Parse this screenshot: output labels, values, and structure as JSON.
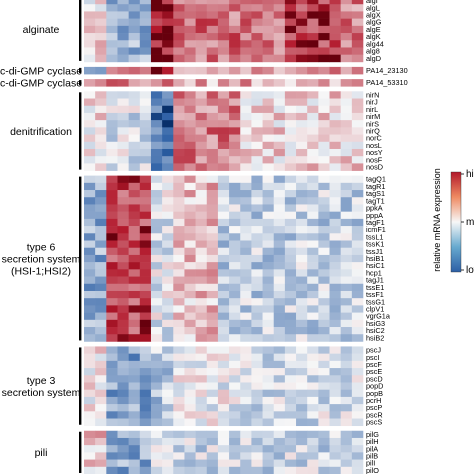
{
  "chart_data": {
    "type": "heatmap",
    "title": "",
    "xlabel": "",
    "ylabel": "",
    "columns": 25,
    "groups": [
      {
        "name": "alginate",
        "genes": [
          "algI",
          "algL",
          "algX",
          "algG",
          "algE",
          "algK",
          "alg44",
          "alg8",
          "algD"
        ],
        "pattern": "alg"
      },
      {
        "name": "c-di-GMP cyclase",
        "genes": [
          "PA14_23130"
        ],
        "pattern": "cdg1"
      },
      {
        "name": "c-di-GMP cyclase",
        "genes": [
          "PA14_53310"
        ],
        "pattern": "cdg2"
      },
      {
        "name": "denitrification",
        "genes": [
          "nirN",
          "nirJ",
          "nirL",
          "nirM",
          "nirS",
          "nirQ",
          "norC",
          "nosL",
          "nosY",
          "nosF",
          "nosD"
        ],
        "pattern": "denit"
      },
      {
        "name": "type 6 secretion system (HSI-1;HSI2)",
        "name_lines": [
          "type 6",
          "secretion system",
          "(HSI-1;HSI2)"
        ],
        "genes": [
          "tagQ1",
          "tagR1",
          "tagS1",
          "tagT1",
          "ppkA",
          "pppA",
          "tagF1",
          "icmF1",
          "tssL1",
          "tssK1",
          "tssJ1",
          "hsiB1",
          "hsiC1",
          "hcp1",
          "tagJ1",
          "tssE1",
          "tssF1",
          "tssG1",
          "clpV1",
          "vgrG1a",
          "hsiG3",
          "hsiC2",
          "hsiB2"
        ],
        "pattern": "t6ss"
      },
      {
        "name": "type 3 secretion system",
        "name_lines": [
          "type 3",
          "secretion system"
        ],
        "genes": [
          "pscJ",
          "pscI",
          "pscF",
          "pscE",
          "pscD",
          "popD",
          "popB",
          "pcrH",
          "pscP",
          "pscR",
          "pscS"
        ],
        "pattern": "t3ss"
      },
      {
        "name": "pili",
        "genes": [
          "pilG",
          "pilH",
          "pilA",
          "pilB",
          "pilI",
          "pilO"
        ],
        "pattern": "pili"
      }
    ],
    "colorbar": {
      "title": "relative mRNA expression",
      "ticks": [
        "high",
        "mean",
        "low"
      ],
      "colors": {
        "low": "#2c5fa5",
        "mean": "#f7f7f7",
        "high": "#b2182b"
      }
    }
  }
}
